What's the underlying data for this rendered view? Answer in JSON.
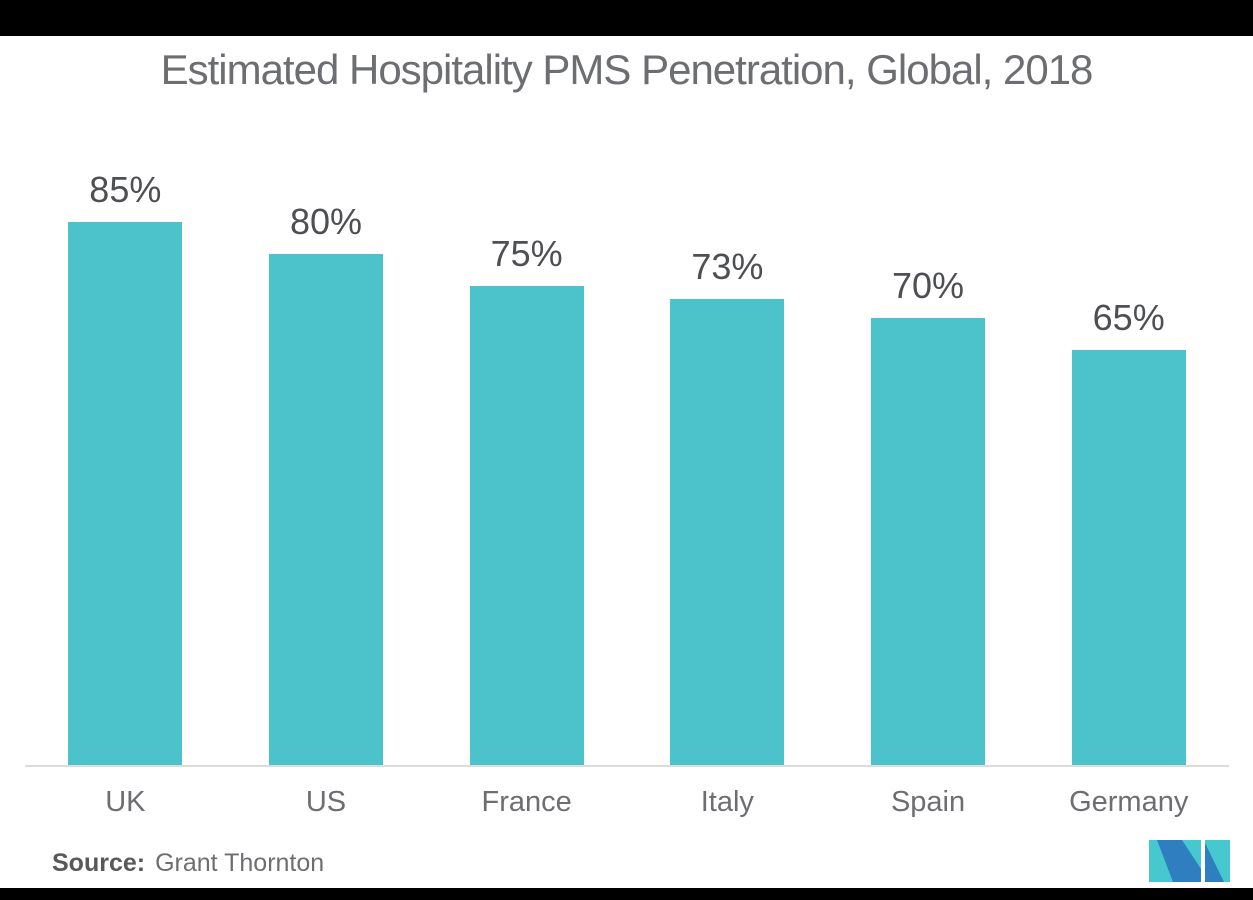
{
  "title": "Estimated Hospitality PMS Penetration, Global, 2018",
  "chart_data": {
    "type": "bar",
    "title": "Estimated Hospitality PMS Penetration, Global, 2018",
    "categories": [
      "UK",
      "US",
      "France",
      "Italy",
      "Spain",
      "Germany"
    ],
    "values": [
      85,
      80,
      75,
      73,
      70,
      65
    ],
    "value_labels": [
      "85%",
      "80%",
      "75%",
      "73%",
      "70%",
      "65%"
    ],
    "unit": "%",
    "xlabel": "",
    "ylabel": "",
    "ylim": [
      0,
      100
    ],
    "grid": false,
    "legend": false,
    "bar_color": "#4CC3CB",
    "value_label_color": "#4E4F52",
    "category_label_color": "#6D6E71",
    "axis_line_color": "#DCDCDC"
  },
  "source": {
    "label": "Source:",
    "text": "Grant Thornton"
  },
  "colors": {
    "background": "#FFFFFF",
    "letterbox": "#000000",
    "title": "#6D6E71"
  },
  "logo": {
    "name": "mordor-intelligence-logo",
    "teal": "#47C8CE",
    "blue": "#2E7EC0"
  }
}
